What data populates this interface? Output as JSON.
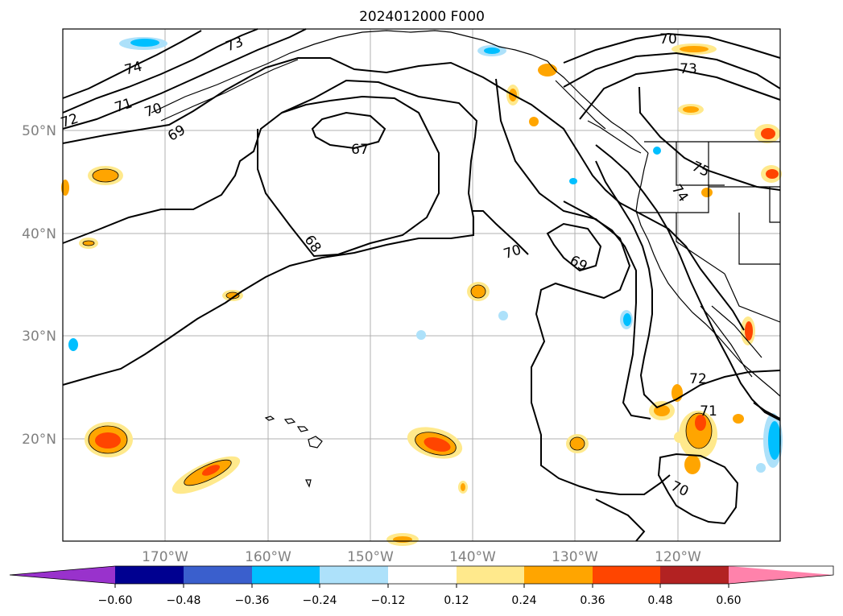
{
  "map": {
    "title": "2024012000 F000",
    "lat_labels": [
      "50°N",
      "40°N",
      "30°N",
      "20°N"
    ],
    "lon_labels": [
      "170°W",
      "160°W",
      "150°W",
      "140°W",
      "130°W",
      "120°W"
    ],
    "contour_labels": [
      "74",
      "73",
      "72",
      "71",
      "70",
      "69",
      "67",
      "68",
      "70",
      "69",
      "70",
      "73",
      "75",
      "74",
      "72",
      "71",
      "70"
    ]
  },
  "colorbar": {
    "ticks": [
      "−0.60",
      "−0.48",
      "−0.36",
      "−0.24",
      "−0.12",
      "0.12",
      "0.24",
      "0.36",
      "0.48",
      "0.60"
    ],
    "colors": [
      "#9932CC",
      "#000090",
      "#3A5FCD",
      "#00BFFF",
      "#ADE1FA",
      "#FFFFFF",
      "#FFE98C",
      "#FFA500",
      "#FF4500",
      "#B22222",
      "#FF82AB"
    ]
  }
}
